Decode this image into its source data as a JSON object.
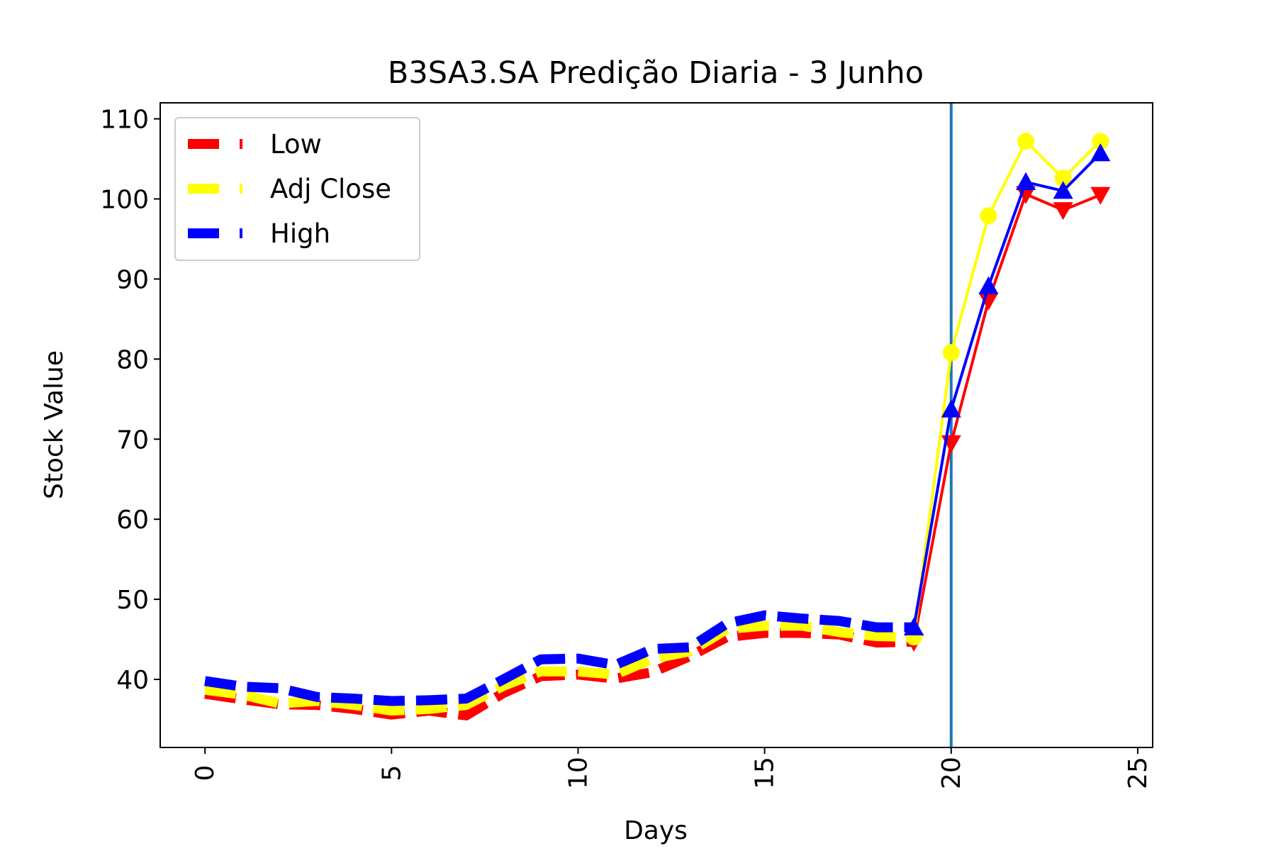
{
  "chart_data": {
    "type": "line",
    "title": "B3SA3.SA Predição Diaria - 3 Junho",
    "xlabel": "Days",
    "ylabel": "Stock Value",
    "xlim": [
      -1.2,
      25.4
    ],
    "ylim": [
      31.5,
      112
    ],
    "xticks": [
      0,
      5,
      10,
      15,
      20,
      25
    ],
    "yticks": [
      40,
      50,
      60,
      70,
      80,
      90,
      100,
      110
    ],
    "grid": false,
    "legend_position": "top-left",
    "vline_x": 20,
    "vline_color": "#1f77b4",
    "series": [
      {
        "name": "Low",
        "color": "#ff0000",
        "marker": "triangle-down",
        "historical_x": [
          0,
          1,
          2,
          3,
          4,
          5,
          6,
          7,
          8,
          9,
          10,
          11,
          12,
          13,
          14,
          15,
          16,
          17,
          18,
          19
        ],
        "historical_y": [
          38.2,
          37.5,
          36.9,
          36.8,
          36.3,
          35.6,
          36.1,
          35.5,
          38.3,
          40.4,
          40.6,
          40.1,
          40.9,
          42.9,
          45.3,
          45.8,
          45.8,
          45.6,
          44.6,
          44.7
        ],
        "predicted_x": [
          19,
          20,
          21,
          22,
          23,
          24
        ],
        "predicted_y": [
          44.7,
          69.5,
          87.3,
          100.6,
          98.6,
          100.5
        ]
      },
      {
        "name": "Adj Close",
        "color": "#ffff00",
        "marker": "circle",
        "historical_x": [
          0,
          1,
          2,
          3,
          4,
          5,
          6,
          7,
          8,
          9,
          10,
          11,
          12,
          13,
          14,
          15,
          16,
          17,
          18,
          19
        ],
        "historical_y": [
          38.7,
          38.1,
          37.0,
          37.3,
          36.8,
          36.1,
          36.3,
          36.8,
          39.2,
          41.0,
          41.0,
          40.6,
          42.6,
          43.5,
          46.3,
          46.7,
          46.7,
          45.9,
          45.4,
          45.3
        ],
        "predicted_x": [
          19,
          20,
          21,
          22,
          23,
          24
        ],
        "predicted_y": [
          45.3,
          80.8,
          97.9,
          107.2,
          102.6,
          107.2
        ]
      },
      {
        "name": "High",
        "color": "#0000ff",
        "marker": "triangle-up",
        "historical_x": [
          0,
          1,
          2,
          3,
          4,
          5,
          6,
          7,
          8,
          9,
          10,
          11,
          12,
          13,
          14,
          15,
          16,
          17,
          18,
          19
        ],
        "historical_y": [
          39.8,
          39.1,
          38.9,
          37.8,
          37.6,
          37.3,
          37.4,
          37.6,
          40.0,
          42.5,
          42.6,
          41.8,
          43.8,
          44.0,
          47.0,
          48.0,
          47.6,
          47.3,
          46.5,
          46.5
        ],
        "predicted_x": [
          19,
          20,
          21,
          22,
          23,
          24
        ],
        "predicted_y": [
          46.5,
          73.7,
          89.1,
          102.1,
          101.0,
          105.7
        ]
      }
    ]
  }
}
